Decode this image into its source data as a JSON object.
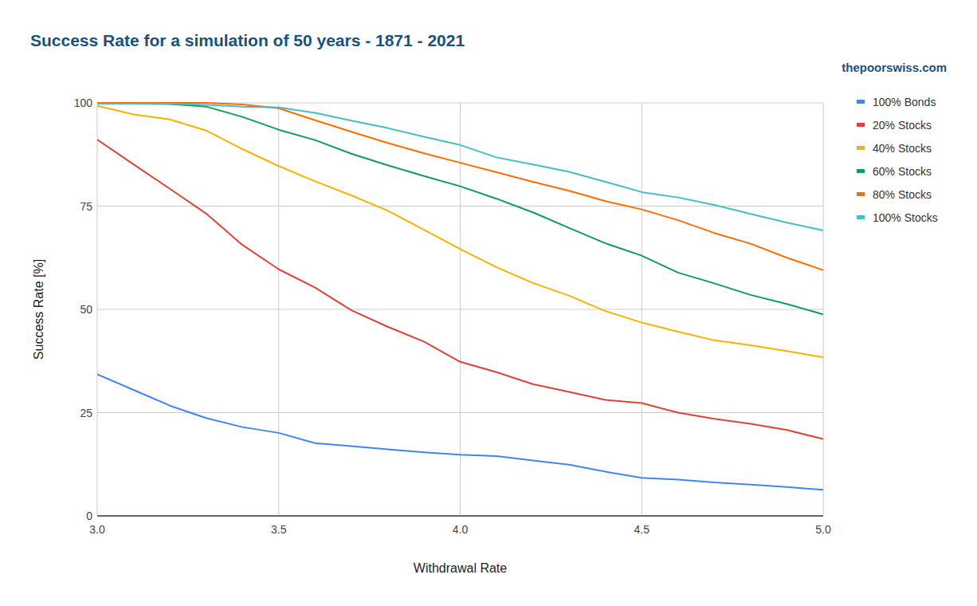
{
  "chart_data": {
    "type": "line",
    "title": "Success Rate for a simulation of 50 years - 1871 - 2021",
    "subtitle": "thepoorswiss.com",
    "x_label": "Withdrawal Rate",
    "y_label": "Success Rate [%]",
    "x": [
      3,
      3.1,
      3.2,
      3.3,
      3.4,
      3.5,
      3.6,
      3.7,
      3.8,
      3.9,
      4,
      4.1,
      4.2,
      4.3,
      4.4,
      4.5,
      4.6,
      4.7,
      4.8,
      4.9,
      5
    ],
    "series": [
      {
        "name": "100% Bonds",
        "color": "#4285f4",
        "values": [
          34.3,
          30.5,
          26.7,
          23.7,
          21.5,
          20.1,
          17.6,
          16.9,
          16.1,
          15.4,
          14.8,
          14.5,
          13.4,
          12.4,
          10.7,
          9.2,
          8.8,
          8.1,
          7.6,
          7.0,
          6.3
        ]
      },
      {
        "name": "20% Stocks",
        "color": "#db4437",
        "values": [
          91.1,
          85.1,
          79.2,
          73.2,
          65.6,
          59.7,
          55.3,
          49.8,
          45.8,
          42.2,
          37.3,
          34.8,
          31.9,
          30.0,
          28.1,
          27.3,
          25.0,
          23.5,
          22.3,
          20.8,
          18.6
        ]
      },
      {
        "name": "40% Stocks",
        "color": "#f4b400",
        "values": [
          99.3,
          97.2,
          96.0,
          93.3,
          88.8,
          84.7,
          81.0,
          77.6,
          73.9,
          69.3,
          64.6,
          60.2,
          56.4,
          53.3,
          49.6,
          46.8,
          44.6,
          42.5,
          41.3,
          39.9,
          38.4
        ]
      },
      {
        "name": "60% Stocks",
        "color": "#0f9d58",
        "values": [
          99.8,
          99.8,
          99.7,
          99.1,
          96.6,
          93.5,
          91.0,
          87.7,
          84.9,
          82.3,
          79.8,
          76.8,
          73.5,
          69.7,
          66.0,
          63.0,
          58.9,
          56.3,
          53.5,
          51.3,
          48.8
        ]
      },
      {
        "name": "80% Stocks",
        "color": "#ff6d01",
        "values": [
          100,
          100,
          100,
          100,
          99.6,
          98.7,
          95.8,
          93.0,
          90.3,
          87.8,
          85.5,
          83.2,
          80.9,
          78.7,
          76.2,
          74.2,
          71.6,
          68.5,
          65.9,
          62.5,
          59.5
        ]
      },
      {
        "name": "100% Stocks",
        "color": "#46bdc6",
        "values": [
          99.8,
          99.8,
          99.8,
          99.5,
          99.1,
          98.9,
          97.6,
          95.7,
          93.9,
          91.8,
          89.8,
          86.8,
          85.1,
          83.3,
          80.9,
          78.4,
          77.1,
          75.3,
          73.1,
          71.0,
          69.1
        ]
      }
    ],
    "xlim": [
      3,
      5
    ],
    "xticks": [
      {
        "value": 3,
        "label": "3.0"
      },
      {
        "value": 3.5,
        "label": "3.5"
      },
      {
        "value": 4,
        "label": "4.0"
      },
      {
        "value": 4.5,
        "label": "4.5"
      },
      {
        "value": 5,
        "label": "5.0"
      }
    ],
    "ylim": [
      0,
      100
    ],
    "yticks": [
      0,
      25,
      50,
      75,
      100
    ],
    "grid": true,
    "legend": "right"
  }
}
